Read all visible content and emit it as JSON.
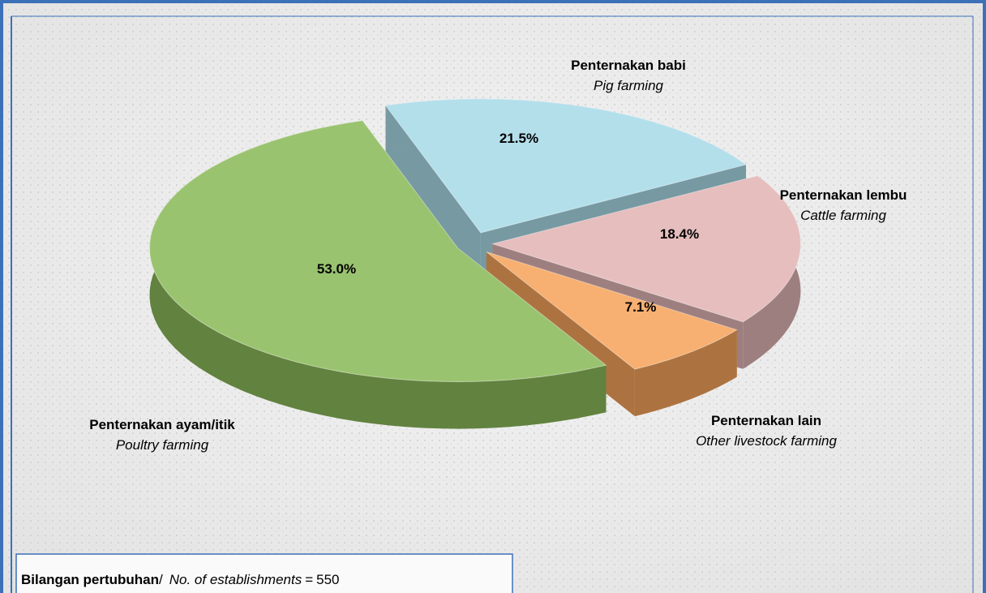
{
  "chart_data": {
    "type": "pie",
    "categories": [
      "Penternakan babi",
      "Penternakan lembu",
      "Penternakan lain",
      "Penternakan ayam/itik"
    ],
    "categories_en": [
      "Pig farming",
      "Cattle farming",
      "Other livestock farming",
      "Poultry farming"
    ],
    "values": [
      21.5,
      18.4,
      7.1,
      53.0
    ],
    "value_labels": [
      "21.5%",
      "18.4%",
      "7.1%",
      "53.0%"
    ],
    "colors": [
      "#a9dbe9",
      "#e3b6b6",
      "#f6a55e",
      "#8dbb5c"
    ],
    "note": {
      "label": "Bilangan pertubuhan",
      "separator": "/",
      "label_en": "No. of establishments",
      "equals": "=",
      "value": 550
    }
  }
}
